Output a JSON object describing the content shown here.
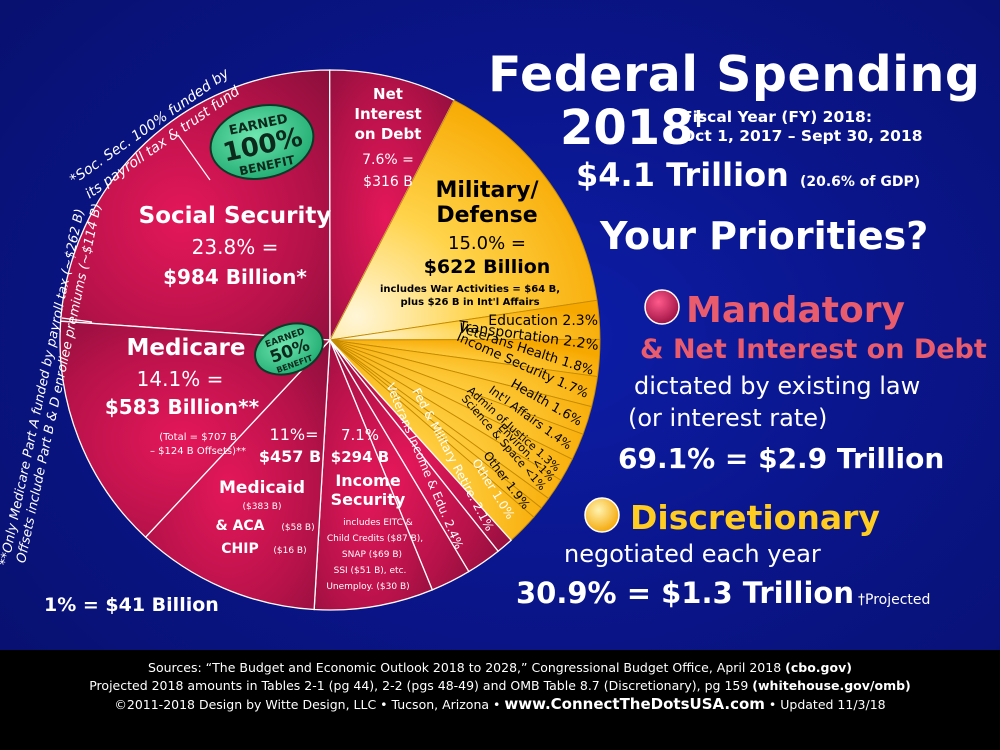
{
  "header": {
    "title_line1": "Federal Spending",
    "year": "2018",
    "year_mark": "†",
    "fy_line1": "Fiscal Year (FY) 2018:",
    "fy_line2": "Oct 1, 2017 – Sept 30, 2018",
    "total": "$4.1 Trillion",
    "gdp": "(20.6% of GDP)",
    "question": "Your Priorities?"
  },
  "legend": {
    "mandatory_title": "Mandatory",
    "mandatory_sub": "& Net Interest on Debt",
    "mandatory_desc1": "dictated by existing law",
    "mandatory_desc2": "(or interest rate)",
    "mandatory_total": "69.1% = $2.9 Trillion",
    "mandatory_color": "#b0113f",
    "discretionary_title": "Discretionary",
    "discretionary_desc": "negotiated each year",
    "discretionary_total": "30.9% = $1.3 Trillion",
    "discretionary_color": "#ffc21a",
    "projected_note": "†Projected"
  },
  "badges": {
    "earned100_top": "EARNED",
    "earned100_mid": "100%",
    "earned100_bot": "BENEFIT",
    "earned50_top": "EARNED",
    "earned50_mid": "50%",
    "earned50_bot": "BENEFIT"
  },
  "notes": {
    "socsec_note1": "*Soc. Sec. 100% funded by",
    "socsec_note2": "its payroll tax & trust fund",
    "medicare_note1": "**Only Medicare Part A funded by payroll tax (~$262 B)",
    "medicare_note2": "Offsets include Part B & D enrollee premiums (~$114 B)",
    "scale": "1% = $41 Billion"
  },
  "chart_data": {
    "type": "pie",
    "unit_note": "1% = $41 Billion",
    "slices": [
      {
        "key": "socsec",
        "label": "Social Security",
        "pct": 23.8,
        "value_text": "$984 Billion*",
        "category": "mandatory",
        "color": "#b01548"
      },
      {
        "key": "interest",
        "label": "Net Interest on Debt",
        "pct": 7.6,
        "value_text": "$316 B",
        "category": "mandatory",
        "color": "#9c1c4c"
      },
      {
        "key": "military",
        "label": "Military/ Defense",
        "pct": 15.0,
        "value_text": "$622 Billion",
        "category": "discretionary",
        "color": "#ffc21a"
      },
      {
        "key": "education",
        "label": "Education 2.3%",
        "pct": 2.3,
        "category": "discretionary",
        "color": "#ffc21a"
      },
      {
        "key": "transport",
        "label": "Transportation 2.2%",
        "pct": 2.2,
        "category": "discretionary",
        "color": "#ffc21a"
      },
      {
        "key": "vets",
        "label": "Veterans Health 1.8%",
        "pct": 1.8,
        "category": "discretionary",
        "color": "#ffc21a"
      },
      {
        "key": "incsecd",
        "label": "Income Security 1.7%",
        "pct": 1.7,
        "category": "discretionary",
        "color": "#ffc21a"
      },
      {
        "key": "health",
        "label": "Health 1.6%",
        "pct": 1.6,
        "category": "discretionary",
        "color": "#ffc21a"
      },
      {
        "key": "intl",
        "label": "Int'l Affairs 1.4%",
        "pct": 1.4,
        "category": "discretionary",
        "color": "#ffc21a"
      },
      {
        "key": "justice",
        "label": "Admin of Justice 1.3%",
        "pct": 1.3,
        "category": "discretionary",
        "color": "#ffc21a"
      },
      {
        "key": "sci",
        "label": "Science & Space <1%",
        "pct": 0.7,
        "category": "discretionary",
        "color": "#ffc21a"
      },
      {
        "key": "env",
        "label": "Environ. <1%",
        "pct": 0.7,
        "category": "discretionary",
        "color": "#ffc21a"
      },
      {
        "key": "otherd",
        "label": "Other 1.9%",
        "pct": 1.9,
        "category": "discretionary",
        "color": "#ffc21a"
      },
      {
        "key": "otherm",
        "label": "Other 1.0%",
        "pct": 1.0,
        "category": "mandatory",
        "color": "#a51647"
      },
      {
        "key": "fed",
        "label": "Fed & Military Retire. 2.1%",
        "pct": 2.1,
        "category": "mandatory",
        "color": "#a51647"
      },
      {
        "key": "vetinc",
        "label": "Veterans Income & Edu. 2.4%",
        "pct": 2.4,
        "category": "mandatory",
        "color": "#a51647"
      },
      {
        "key": "incsec",
        "label": "Income Security",
        "pct": 7.1,
        "value_text": "$294 B",
        "category": "mandatory",
        "color": "#b01548"
      },
      {
        "key": "medicaid",
        "label": "Medicaid & ACA CHIP",
        "pct": 11.0,
        "value_text": "$457 B",
        "category": "mandatory",
        "color": "#b01548"
      },
      {
        "key": "medicare",
        "label": "Medicare",
        "pct": 14.1,
        "value_text": "$583 Billion**",
        "category": "mandatory",
        "color": "#b01548"
      }
    ]
  },
  "pie_labels": {
    "socsec_name": "Social Security",
    "socsec_pct": "23.8% =",
    "socsec_val": "$984 Billion*",
    "interest_l1": "Net",
    "interest_l2": "Interest",
    "interest_l3": "on Debt",
    "interest_pct": "7.6% =",
    "interest_val": "$316 B",
    "military_l1": "Military/",
    "military_l2": "Defense",
    "military_pct": "15.0% =",
    "military_val": "$622 Billion",
    "military_note1": "includes War Activities = $64 B,",
    "military_note2": "plus $26 B in Int'l Affairs",
    "medicare_name": "Medicare",
    "medicare_pct": "14.1% =",
    "medicare_val": "$583 Billion**",
    "medicare_note1": "(Total = $707 B",
    "medicare_note2": "– $124 B Offsets)**",
    "medicaid_pct": "11%=",
    "medicaid_val": "$457 B",
    "medicaid_name": "Medicaid",
    "medicaid_sub": "($383 B)",
    "aca": "& ACA",
    "aca_sub": "($58 B)",
    "chip": "CHIP",
    "chip_sub": "($16 B)",
    "incsec_pct": "7.1%",
    "incsec_val": "$294 B",
    "incsec_l1": "Income",
    "incsec_l2": "Security",
    "incsec_n1": "includes EITC &",
    "incsec_n2": "Child Credits ($87 B),",
    "incsec_n3": "SNAP ($69 B)",
    "incsec_n4": "SSI ($51 B), etc.",
    "incsec_n5": "Unemploy. ($30 B)"
  },
  "footer": {
    "line1a": "Sources: “The Budget and Economic Outlook 2018 to 2028,” Congressional Budget Office, April 2018 ",
    "line1b": "(cbo.gov)",
    "line2a": "Projected 2018 amounts in Tables 2-1 (pg 44), 2-2 (pgs 48-49) and OMB Table 8.7 (Discretionary), pg 159 ",
    "line2b": "(whitehouse.gov/omb)",
    "line3a": "©2011-2018 Design by Witte Design, LLC • Tucson, Arizona • ",
    "line3b": "www.ConnectTheDotsUSA.com",
    "line3c": " • Updated 11/3/18"
  }
}
